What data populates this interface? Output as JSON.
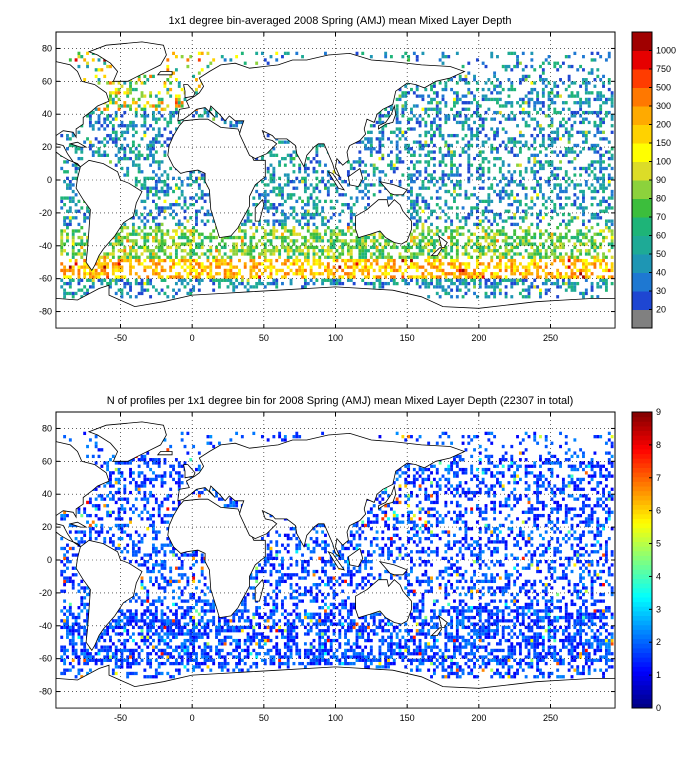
{
  "chart_data": [
    {
      "type": "heatmap",
      "title": "1x1 degree bin-averaged 2008 Spring (AMJ) mean Mixed Layer Depth",
      "xlim": [
        -95,
        295
      ],
      "ylim": [
        -90,
        90
      ],
      "x_ticks": [
        -50,
        0,
        50,
        100,
        150,
        200,
        250
      ],
      "y_ticks": [
        -80,
        -60,
        -40,
        -20,
        0,
        20,
        40,
        60,
        80
      ],
      "grid": true,
      "colorbar": {
        "type": "discrete",
        "ticks": [
          "20",
          "30",
          "40",
          "50",
          "60",
          "70",
          "80",
          "90",
          "100",
          "150",
          "200",
          "300",
          "500",
          "750",
          "1000"
        ],
        "colors": [
          "#808080",
          "#1e46d2",
          "#1e78d2",
          "#1e96b4",
          "#1eaa96",
          "#1eb478",
          "#3cbe3c",
          "#8cd23c",
          "#dcdc28",
          "#ffff00",
          "#ffd200",
          "#ffaa00",
          "#ff7800",
          "#ff3c00",
          "#e60000",
          "#a00000"
        ]
      },
      "regions": [
        {
          "lon": [
            -90,
            290
          ],
          "lat": [
            -62,
            -48
          ],
          "typical_value": "150-500"
        },
        {
          "lon": [
            -90,
            290
          ],
          "lat": [
            -48,
            -30
          ],
          "typical_value": "70-100"
        },
        {
          "lon": [
            -90,
            290
          ],
          "lat": [
            -30,
            40
          ],
          "typical_value": "30-70"
        },
        {
          "lon": [
            -60,
            20
          ],
          "lat": [
            40,
            75
          ],
          "typical_value": "100-1000"
        }
      ]
    },
    {
      "type": "heatmap",
      "title": "N of profiles per 1x1 degree bin for 2008 Spring (AMJ) mean Mixed Layer Depth  (22307 in total)",
      "xlim": [
        -95,
        295
      ],
      "ylim": [
        -90,
        90
      ],
      "x_ticks": [
        -50,
        0,
        50,
        100,
        150,
        200,
        250
      ],
      "y_ticks": [
        -80,
        -60,
        -40,
        -20,
        0,
        20,
        40,
        60,
        80
      ],
      "grid": true,
      "colorbar": {
        "type": "continuous",
        "colormap": "jet",
        "range": [
          0,
          9
        ],
        "ticks": [
          "0",
          "1",
          "2",
          "3",
          "4",
          "5",
          "6",
          "7",
          "8",
          "9"
        ]
      },
      "regions": [
        {
          "lon": [
            -90,
            290
          ],
          "lat": [
            -70,
            70
          ],
          "typical_value": "1-2"
        },
        {
          "lon": [
            130,
            160
          ],
          "lat": [
            25,
            45
          ],
          "typical_value": "3-9"
        }
      ]
    }
  ]
}
